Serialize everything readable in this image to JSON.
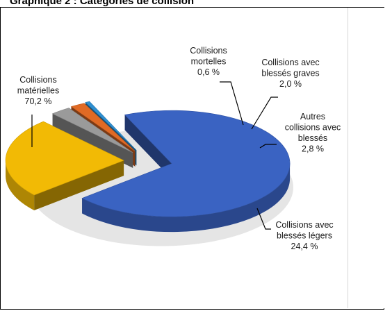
{
  "figure": {
    "title": "Graphique 2 : Catégories de collision"
  },
  "chart_data": {
    "type": "pie",
    "title": "Graphique 2 : Catégories de collision",
    "style": "3d-exploded",
    "unit": "%",
    "slices": [
      {
        "key": "materielles",
        "label": [
          "Collisions",
          "matérielles",
          "70,2 %"
        ],
        "value": 70.2,
        "color": "#3A63C2"
      },
      {
        "key": "legers",
        "label": [
          "Collisions avec",
          "blessés légers",
          "24,4 %"
        ],
        "value": 24.4,
        "color": "#F2BA05"
      },
      {
        "key": "autres",
        "label": [
          "Autres",
          "collisions avec",
          "blessés",
          "2,8 %"
        ],
        "value": 2.8,
        "color": "#9A9A9A"
      },
      {
        "key": "graves",
        "label": [
          "Collisions avec",
          "blessés graves",
          "2,0 %"
        ],
        "value": 2.0,
        "color": "#E06A25"
      },
      {
        "key": "mortelles",
        "label": [
          "Collisions",
          "mortelles",
          "0,6 %"
        ],
        "value": 0.6,
        "color": "#2E8FD0"
      }
    ]
  }
}
